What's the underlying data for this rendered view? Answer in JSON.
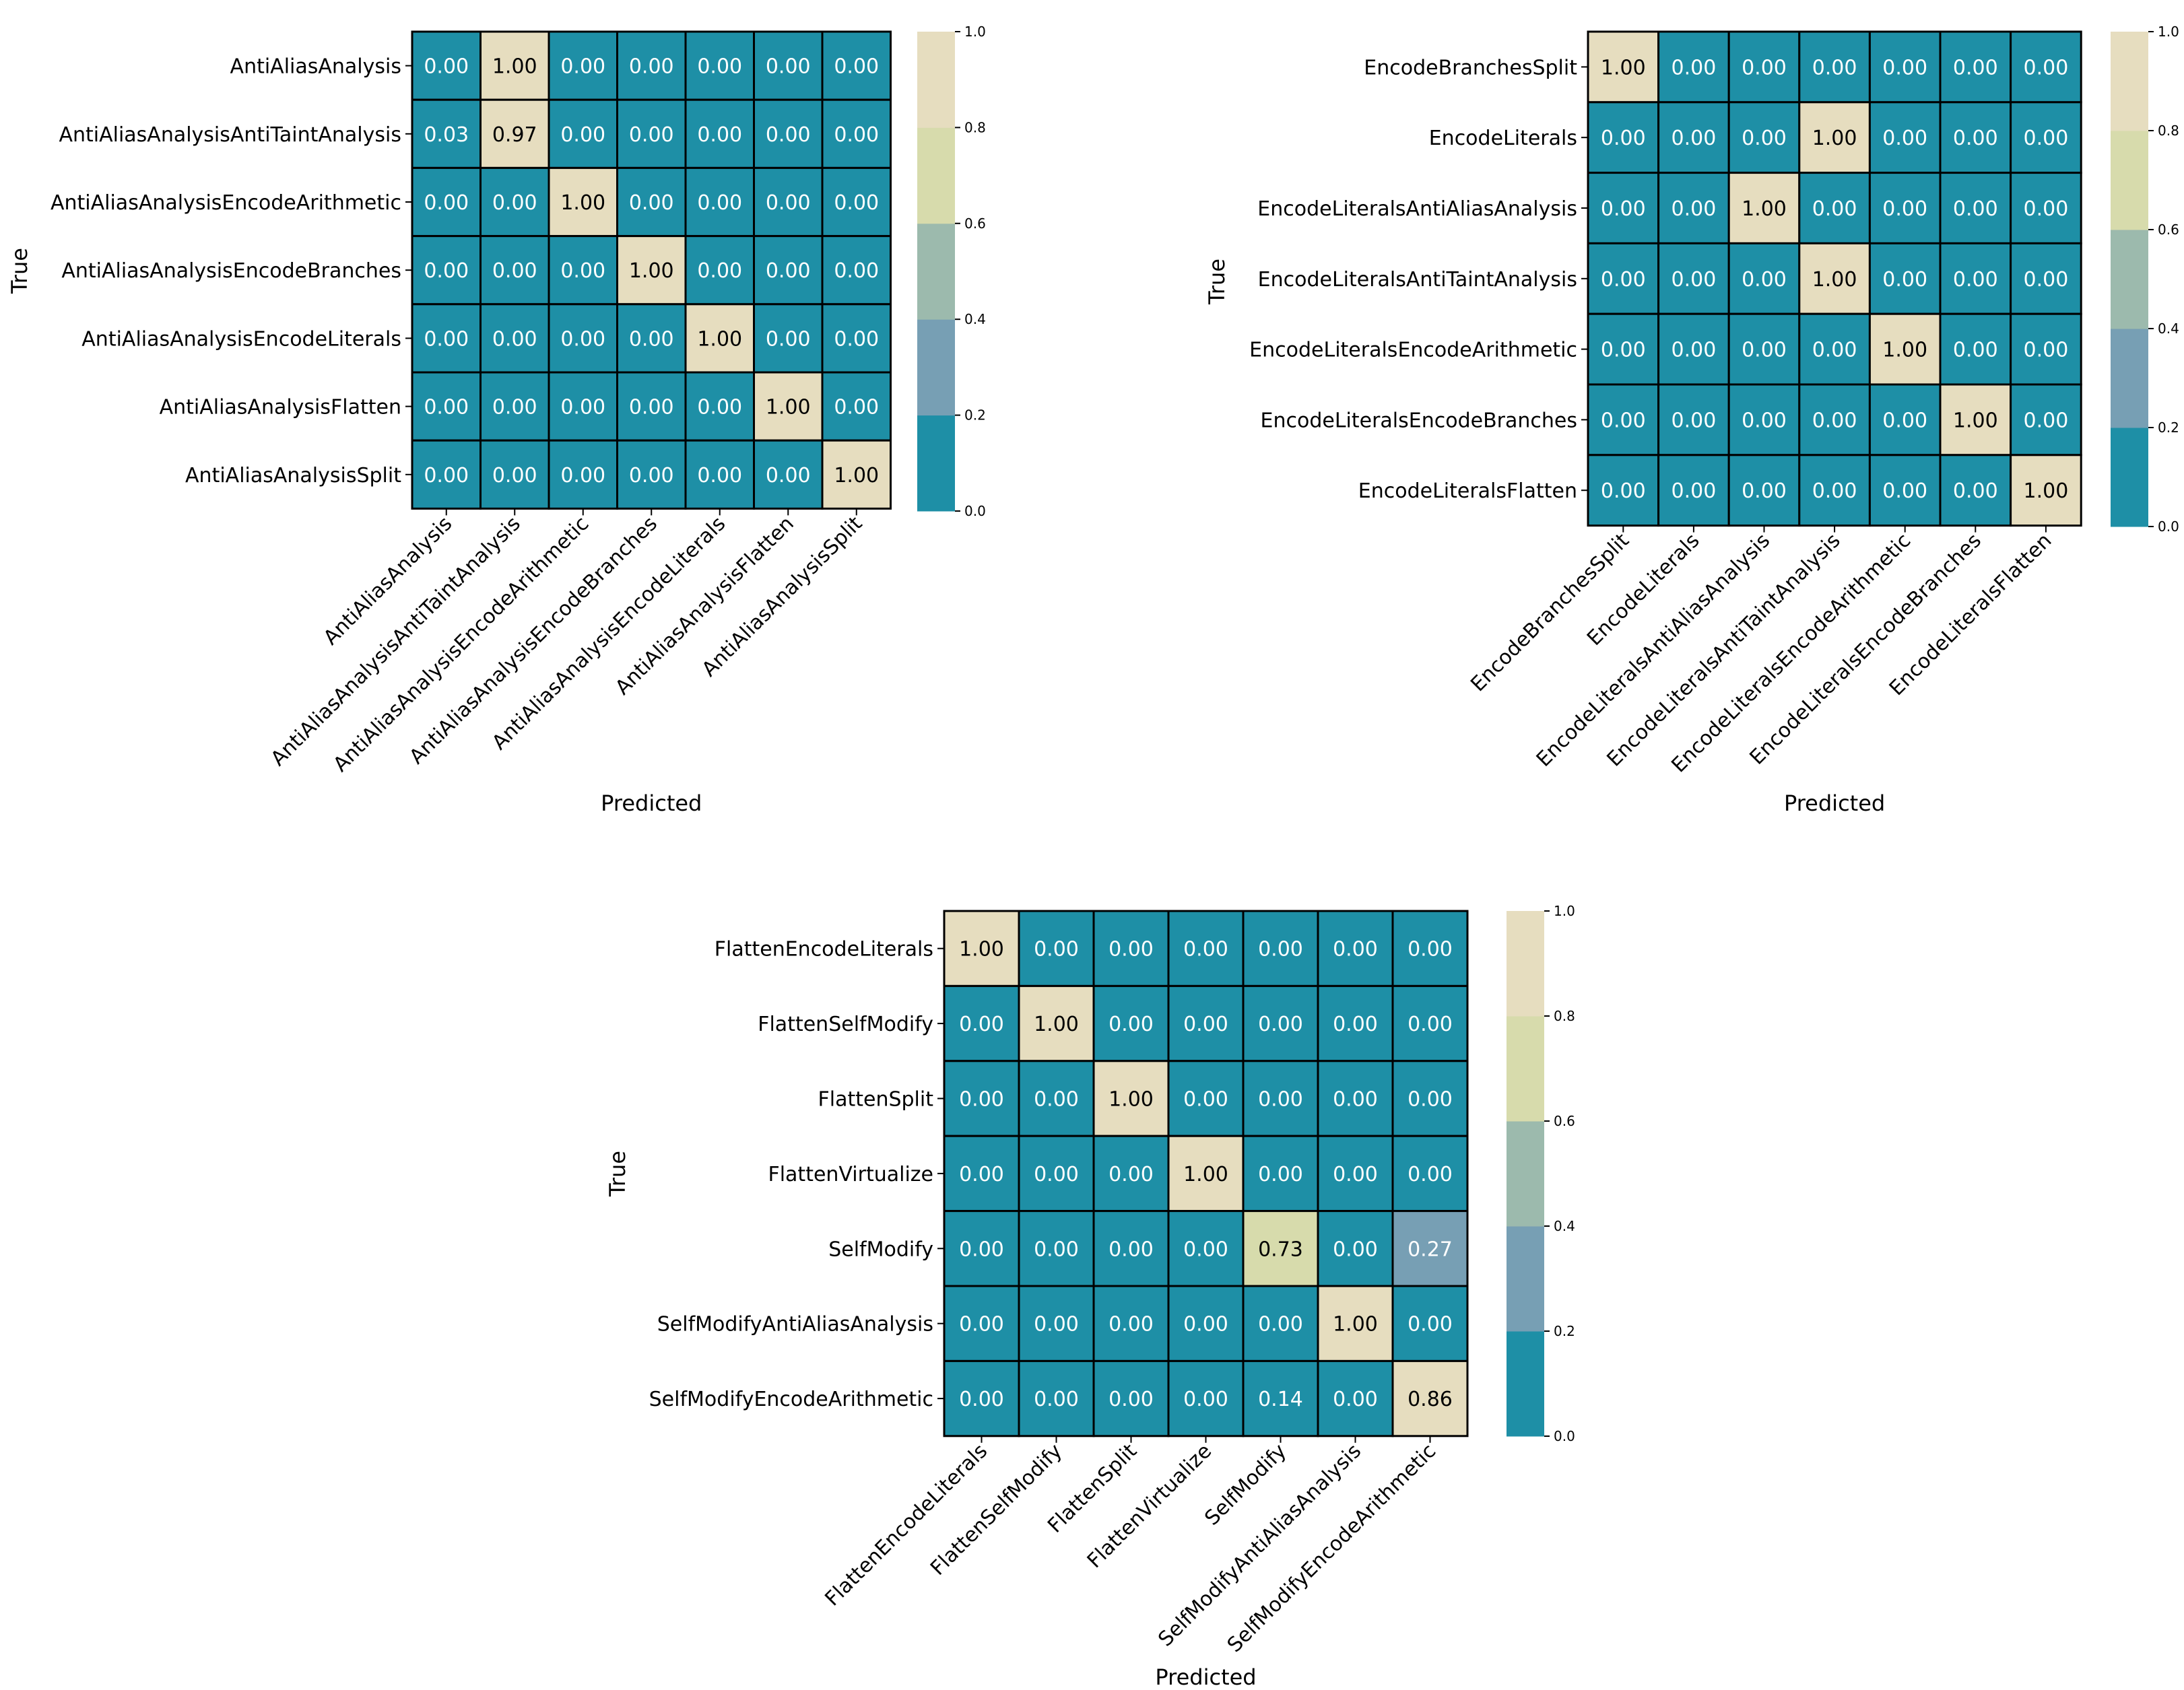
{
  "colors": {
    "low": "#1e8fa6",
    "band_0_2": "#1e8fa6",
    "band_2_4": "#779fb4",
    "band_4_6": "#9cbaad",
    "band_6_8": "#d7dbac",
    "band_8_10": "#e6ddbf",
    "cell_border": "#000000",
    "text_on_dark": "#ffffff",
    "text_on_light": "#000000"
  },
  "chart_data": [
    {
      "type": "heatmap",
      "xlabel": "Predicted",
      "ylabel": "True",
      "row_labels": [
        "AntiAliasAnalysis",
        "AntiAliasAnalysisAntiTaintAnalysis",
        "AntiAliasAnalysisEncodeArithmetic",
        "AntiAliasAnalysisEncodeBranches",
        "AntiAliasAnalysisEncodeLiterals",
        "AntiAliasAnalysisFlatten",
        "AntiAliasAnalysisSplit"
      ],
      "col_labels": [
        "AntiAliasAnalysis",
        "AntiAliasAnalysisAntiTaintAnalysis",
        "AntiAliasAnalysisEncodeArithmetic",
        "AntiAliasAnalysisEncodeBranches",
        "AntiAliasAnalysisEncodeLiterals",
        "AntiAliasAnalysisFlatten",
        "AntiAliasAnalysisSplit"
      ],
      "values": [
        [
          0.0,
          1.0,
          0.0,
          0.0,
          0.0,
          0.0,
          0.0
        ],
        [
          0.03,
          0.97,
          0.0,
          0.0,
          0.0,
          0.0,
          0.0
        ],
        [
          0.0,
          0.0,
          1.0,
          0.0,
          0.0,
          0.0,
          0.0
        ],
        [
          0.0,
          0.0,
          0.0,
          1.0,
          0.0,
          0.0,
          0.0
        ],
        [
          0.0,
          0.0,
          0.0,
          0.0,
          1.0,
          0.0,
          0.0
        ],
        [
          0.0,
          0.0,
          0.0,
          0.0,
          0.0,
          1.0,
          0.0
        ],
        [
          0.0,
          0.0,
          0.0,
          0.0,
          0.0,
          0.0,
          1.0
        ]
      ],
      "colorbar_ticks": [
        "0.0",
        "0.2",
        "0.4",
        "0.6",
        "0.8",
        "1.0"
      ],
      "colorbar_range": [
        0,
        1
      ]
    },
    {
      "type": "heatmap",
      "xlabel": "Predicted",
      "ylabel": "True",
      "row_labels": [
        "EncodeBranchesSplit",
        "EncodeLiterals",
        "EncodeLiteralsAntiAliasAnalysis",
        "EncodeLiteralsAntiTaintAnalysis",
        "EncodeLiteralsEncodeArithmetic",
        "EncodeLiteralsEncodeBranches",
        "EncodeLiteralsFlatten"
      ],
      "col_labels": [
        "EncodeBranchesSplit",
        "EncodeLiterals",
        "EncodeLiteralsAntiAliasAnalysis",
        "EncodeLiteralsAntiTaintAnalysis",
        "EncodeLiteralsEncodeArithmetic",
        "EncodeLiteralsEncodeBranches",
        "EncodeLiteralsFlatten"
      ],
      "values": [
        [
          1.0,
          0.0,
          0.0,
          0.0,
          0.0,
          0.0,
          0.0
        ],
        [
          0.0,
          0.0,
          0.0,
          1.0,
          0.0,
          0.0,
          0.0
        ],
        [
          0.0,
          0.0,
          1.0,
          0.0,
          0.0,
          0.0,
          0.0
        ],
        [
          0.0,
          0.0,
          0.0,
          1.0,
          0.0,
          0.0,
          0.0
        ],
        [
          0.0,
          0.0,
          0.0,
          0.0,
          1.0,
          0.0,
          0.0
        ],
        [
          0.0,
          0.0,
          0.0,
          0.0,
          0.0,
          1.0,
          0.0
        ],
        [
          0.0,
          0.0,
          0.0,
          0.0,
          0.0,
          0.0,
          1.0
        ]
      ],
      "colorbar_ticks": [
        "0.0",
        "0.2",
        "0.4",
        "0.6",
        "0.8",
        "1.0"
      ],
      "colorbar_range": [
        0,
        1
      ]
    },
    {
      "type": "heatmap",
      "xlabel": "Predicted",
      "ylabel": "True",
      "row_labels": [
        "FlattenEncodeLiterals",
        "FlattenSelfModify",
        "FlattenSplit",
        "FlattenVirtualize",
        "SelfModify",
        "SelfModifyAntiAliasAnalysis",
        "SelfModifyEncodeArithmetic"
      ],
      "col_labels": [
        "FlattenEncodeLiterals",
        "FlattenSelfModify",
        "FlattenSplit",
        "FlattenVirtualize",
        "SelfModify",
        "SelfModifyAntiAliasAnalysis",
        "SelfModifyEncodeArithmetic"
      ],
      "values": [
        [
          1.0,
          0.0,
          0.0,
          0.0,
          0.0,
          0.0,
          0.0
        ],
        [
          0.0,
          1.0,
          0.0,
          0.0,
          0.0,
          0.0,
          0.0
        ],
        [
          0.0,
          0.0,
          1.0,
          0.0,
          0.0,
          0.0,
          0.0
        ],
        [
          0.0,
          0.0,
          0.0,
          1.0,
          0.0,
          0.0,
          0.0
        ],
        [
          0.0,
          0.0,
          0.0,
          0.0,
          0.73,
          0.0,
          0.27
        ],
        [
          0.0,
          0.0,
          0.0,
          0.0,
          0.0,
          1.0,
          0.0
        ],
        [
          0.0,
          0.0,
          0.0,
          0.0,
          0.14,
          0.0,
          0.86
        ]
      ],
      "colorbar_ticks": [
        "0.0",
        "0.2",
        "0.4",
        "0.6",
        "0.8",
        "1.0"
      ],
      "colorbar_range": [
        0,
        1
      ]
    }
  ]
}
